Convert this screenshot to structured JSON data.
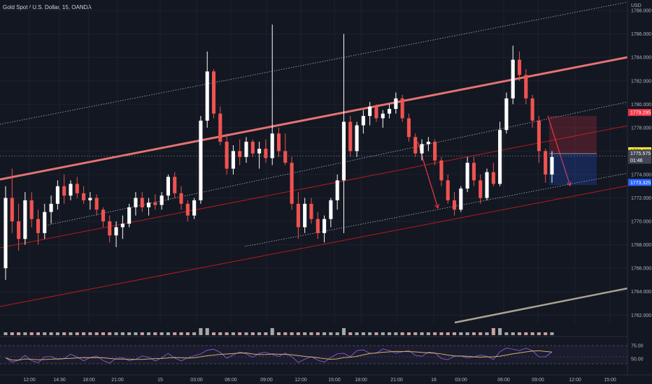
{
  "header": {
    "title": "Gold Spot / U.S. Dollar, 15, OANDA"
  },
  "chart_data": {
    "type": "candlestick",
    "currency_label": "USD",
    "y_ticks": [
      "1788.000",
      "1786.000",
      "1784.000",
      "1782.000",
      "1780.000",
      "1778.000",
      "1776.000",
      "1774.000",
      "1772.000",
      "1770.000",
      "1768.000",
      "1766.000",
      "1764.000",
      "1762.000"
    ],
    "ylim": [
      1761.3,
      1788.9
    ],
    "x_ticks": [
      "12:00",
      "14:30",
      "18:00",
      "21:00",
      "15",
      "03:00",
      "06:00",
      "09:00",
      "12:00",
      "15:00",
      "18:00",
      "21:00",
      "16",
      "03:00",
      "06:00",
      "09:00",
      "12:00",
      "15:00"
    ],
    "rsi_ticks": [
      "75.00",
      "50.00"
    ],
    "price_tags": [
      {
        "label": "1779.295",
        "value": 1779.295,
        "bg": "#f23645",
        "fg": "#ffffff"
      },
      {
        "label": "1776.030",
        "value": 1776.03,
        "bg": "#ffeb3b",
        "fg": "#000000"
      },
      {
        "label": "1775.575",
        "value": 1775.575,
        "bg": "#434651",
        "fg": "#ffffff"
      },
      {
        "label": "01:46",
        "value": 1774.95,
        "bg": "#434651",
        "fg": "#ffffff"
      },
      {
        "label": "1773.325",
        "value": 1773.325,
        "bg": "#2962ff",
        "fg": "#ffffff"
      }
    ],
    "candles": [
      [
        1766.0,
        1773.0,
        1765.0,
        1772.0
      ],
      [
        1772.0,
        1774.5,
        1769.0,
        1770.0
      ],
      [
        1770.0,
        1771.5,
        1767.5,
        1768.5
      ],
      [
        1768.5,
        1772.5,
        1768.0,
        1771.8
      ],
      [
        1771.8,
        1772.5,
        1769.5,
        1770.2
      ],
      [
        1770.2,
        1771.0,
        1768.0,
        1769.0
      ],
      [
        1769.0,
        1771.5,
        1768.5,
        1770.8
      ],
      [
        1770.8,
        1772.2,
        1769.8,
        1771.5
      ],
      [
        1771.5,
        1773.5,
        1771.0,
        1773.0
      ],
      [
        1773.0,
        1774.0,
        1771.5,
        1772.2
      ],
      [
        1772.2,
        1773.5,
        1771.8,
        1773.2
      ],
      [
        1773.2,
        1773.8,
        1772.0,
        1772.4
      ],
      [
        1772.4,
        1773.0,
        1771.5,
        1771.8
      ],
      [
        1771.8,
        1772.5,
        1771.0,
        1772.0
      ],
      [
        1772.0,
        1772.3,
        1770.5,
        1771.0
      ],
      [
        1771.0,
        1771.2,
        1769.5,
        1770.0
      ],
      [
        1770.0,
        1770.5,
        1768.2,
        1768.8
      ],
      [
        1768.8,
        1770.0,
        1767.8,
        1769.5
      ],
      [
        1769.5,
        1770.5,
        1768.5,
        1769.8
      ],
      [
        1769.8,
        1771.5,
        1769.5,
        1771.2
      ],
      [
        1771.2,
        1772.5,
        1770.5,
        1772.0
      ],
      [
        1772.0,
        1772.5,
        1770.8,
        1771.2
      ],
      [
        1771.2,
        1772.0,
        1770.5,
        1771.6
      ],
      [
        1771.6,
        1772.3,
        1771.0,
        1771.4
      ],
      [
        1771.4,
        1772.5,
        1771.0,
        1772.2
      ],
      [
        1772.2,
        1774.0,
        1771.8,
        1773.8
      ],
      [
        1773.8,
        1774.2,
        1772.0,
        1772.4
      ],
      [
        1772.4,
        1773.0,
        1771.0,
        1771.5
      ],
      [
        1771.5,
        1771.8,
        1770.0,
        1770.5
      ],
      [
        1770.5,
        1772.0,
        1770.2,
        1771.8
      ],
      [
        1771.8,
        1779.0,
        1771.5,
        1778.6
      ],
      [
        1778.6,
        1784.5,
        1778.0,
        1782.8
      ],
      [
        1782.8,
        1783.0,
        1778.8,
        1779.2
      ],
      [
        1779.2,
        1779.8,
        1776.5,
        1776.8
      ],
      [
        1776.8,
        1777.5,
        1774.0,
        1774.5
      ],
      [
        1774.5,
        1776.5,
        1774.0,
        1776.0
      ],
      [
        1776.0,
        1777.0,
        1774.8,
        1775.5
      ],
      [
        1775.5,
        1777.2,
        1775.0,
        1776.8
      ],
      [
        1776.8,
        1777.0,
        1775.5,
        1775.8
      ],
      [
        1775.8,
        1776.8,
        1774.5,
        1776.2
      ],
      [
        1776.2,
        1777.0,
        1775.0,
        1775.4
      ],
      [
        1775.4,
        1786.8,
        1774.8,
        1777.5
      ],
      [
        1777.5,
        1778.0,
        1775.5,
        1776.0
      ],
      [
        1776.0,
        1777.5,
        1774.8,
        1775.0
      ],
      [
        1775.0,
        1775.5,
        1771.0,
        1771.5
      ],
      [
        1771.5,
        1772.5,
        1768.5,
        1769.5
      ],
      [
        1769.5,
        1772.0,
        1769.0,
        1771.5
      ],
      [
        1771.5,
        1772.0,
        1769.8,
        1770.2
      ],
      [
        1770.2,
        1770.8,
        1768.5,
        1769.0
      ],
      [
        1769.0,
        1770.5,
        1768.2,
        1770.2
      ],
      [
        1770.2,
        1772.0,
        1769.5,
        1771.8
      ],
      [
        1771.8,
        1774.0,
        1771.0,
        1773.5
      ],
      [
        1773.5,
        1786.0,
        1769.0,
        1778.5
      ],
      [
        1778.5,
        1779.0,
        1775.5,
        1776.0
      ],
      [
        1776.0,
        1778.5,
        1775.5,
        1778.2
      ],
      [
        1778.2,
        1779.5,
        1777.5,
        1779.0
      ],
      [
        1779.0,
        1780.2,
        1778.2,
        1779.8
      ],
      [
        1779.8,
        1780.0,
        1778.5,
        1778.8
      ],
      [
        1778.8,
        1779.5,
        1778.0,
        1779.2
      ],
      [
        1779.2,
        1780.0,
        1778.8,
        1779.6
      ],
      [
        1779.6,
        1781.0,
        1779.2,
        1780.5
      ],
      [
        1780.5,
        1780.8,
        1778.5,
        1778.8
      ],
      [
        1778.8,
        1779.2,
        1776.8,
        1777.2
      ],
      [
        1777.2,
        1777.5,
        1775.5,
        1775.8
      ],
      [
        1775.8,
        1777.0,
        1775.2,
        1776.6
      ],
      [
        1776.6,
        1777.2,
        1776.0,
        1776.8
      ],
      [
        1776.8,
        1777.0,
        1774.8,
        1775.2
      ],
      [
        1775.2,
        1775.5,
        1773.0,
        1773.5
      ],
      [
        1773.5,
        1774.0,
        1771.5,
        1771.8
      ],
      [
        1771.8,
        1772.5,
        1770.5,
        1771.0
      ],
      [
        1771.0,
        1773.0,
        1770.8,
        1772.8
      ],
      [
        1772.8,
        1775.5,
        1772.5,
        1775.0
      ],
      [
        1775.0,
        1775.5,
        1773.0,
        1773.5
      ],
      [
        1773.5,
        1774.0,
        1771.5,
        1772.0
      ],
      [
        1772.0,
        1774.5,
        1771.8,
        1774.2
      ],
      [
        1774.2,
        1775.0,
        1773.0,
        1773.2
      ],
      [
        1773.2,
        1778.5,
        1773.0,
        1777.8
      ],
      [
        1777.8,
        1781.0,
        1777.5,
        1780.5
      ],
      [
        1780.5,
        1785.0,
        1780.0,
        1783.8
      ],
      [
        1783.8,
        1784.5,
        1782.0,
        1782.5
      ],
      [
        1782.5,
        1783.0,
        1780.0,
        1780.5
      ],
      [
        1780.5,
        1780.8,
        1778.0,
        1778.6
      ],
      [
        1778.6,
        1779.0,
        1775.0,
        1776.0
      ],
      [
        1776.0,
        1776.2,
        1773.3,
        1774.0
      ],
      [
        1774.0,
        1776.0,
        1773.3,
        1775.5
      ]
    ]
  }
}
